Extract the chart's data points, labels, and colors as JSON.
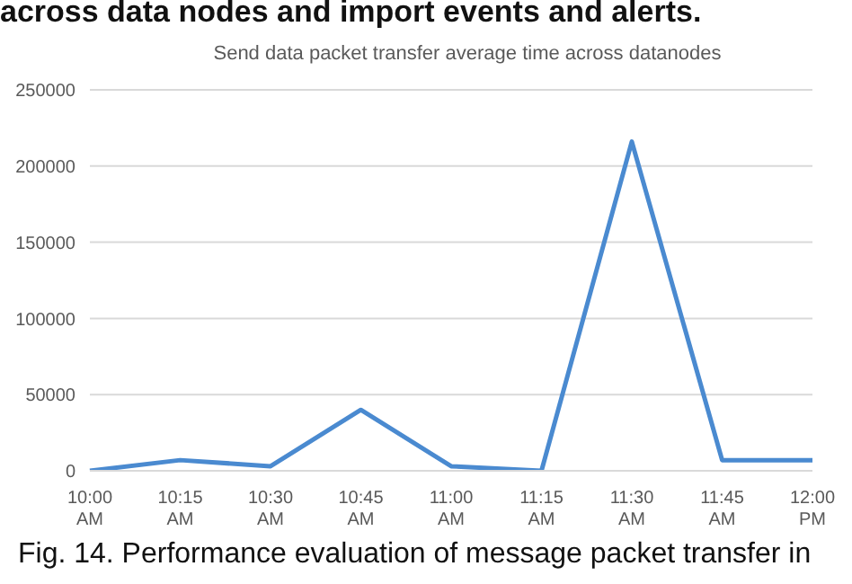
{
  "chart_data": {
    "type": "line",
    "title": "Send data packet transfer average time across datanodes",
    "categories": [
      "10:00 AM",
      "10:15 AM",
      "10:30 AM",
      "10:45 AM",
      "11:00 AM",
      "11:15 AM",
      "11:30 AM",
      "11:45 AM",
      "12:00 PM"
    ],
    "values": [
      0,
      7000,
      3000,
      40000,
      3000,
      0,
      216000,
      7000,
      7000
    ],
    "color": "#4a8ad0",
    "ylim": [
      0,
      250000
    ],
    "yticks": [
      0,
      50000,
      100000,
      150000,
      200000,
      250000
    ],
    "grid": "y",
    "marker": "none",
    "annotations": [
      "across data nodes and import events and alerts.",
      "Fig. 14. Performance evaluation of message packet transfer in"
    ]
  }
}
